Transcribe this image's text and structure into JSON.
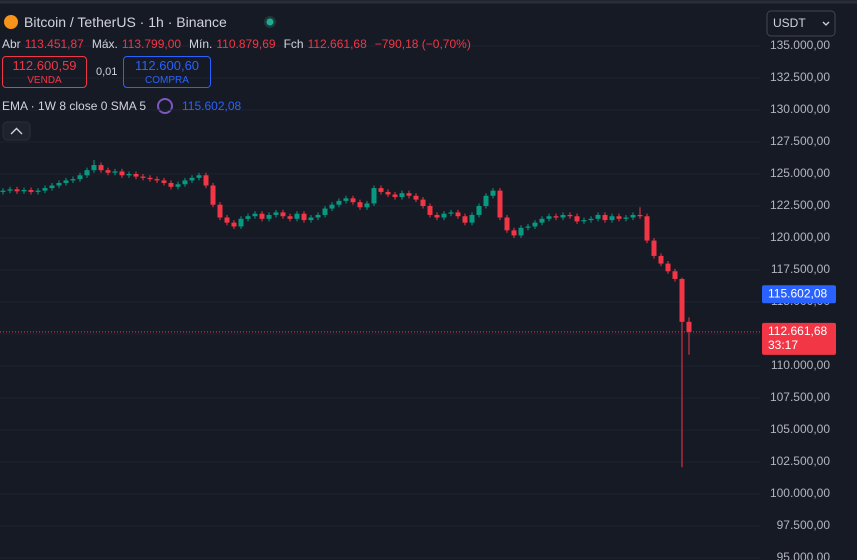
{
  "header": {
    "symbol": "Bitcoin / TetherUS · 1h · Binance",
    "ohlc": [
      {
        "label": "Abr",
        "value": "113.451,87"
      },
      {
        "label": "Máx.",
        "value": "113.799,00"
      },
      {
        "label": "Mín.",
        "value": "110.879,69"
      },
      {
        "label": "Fch",
        "value": "112.661,68"
      }
    ],
    "change": "−790,18 (−0,70%)"
  },
  "trade": {
    "sell_price": "112.600,59",
    "sell_label": "VENDA",
    "spread": "0,01",
    "buy_price": "112.600,60",
    "buy_label": "COMPRA"
  },
  "indicator": {
    "name": "EMA · 1W 8 close 0 SMA 5",
    "value": "115.602,08"
  },
  "currency": "USDT",
  "chart_data": {
    "type": "candlestick",
    "open": [
      123600,
      123700,
      123800,
      123650,
      123750,
      123600,
      123700,
      123900,
      124100,
      124300,
      124500,
      124600,
      124900,
      125300,
      125700,
      125300,
      125100,
      125200,
      124900,
      125000,
      124800,
      124700,
      124600,
      124500,
      124300,
      124000,
      124200,
      124500,
      124700,
      124900,
      124100,
      122600,
      121600,
      121200,
      120900,
      121500,
      121700,
      121900,
      121500,
      121800,
      122000,
      121700,
      121500,
      121900,
      121400,
      121600,
      121800,
      122300,
      122600,
      122900,
      123100,
      122800,
      122400,
      122700,
      123900,
      123600,
      123400,
      123200,
      123500,
      123300,
      123000,
      122500,
      121800,
      121600,
      121900,
      122000,
      121700,
      121200,
      121800,
      122500,
      123300,
      123700,
      121600,
      120600,
      120200,
      120800,
      120900,
      121200,
      121500,
      121700,
      121600,
      121800,
      121700,
      121300,
      121400,
      121500,
      121800,
      121400,
      121700,
      121500,
      121600,
      121800,
      121700,
      119800,
      118600,
      118000,
      117400,
      116800,
      113451.87
    ],
    "high": [
      123900,
      124000,
      124000,
      123950,
      123950,
      123900,
      124100,
      124300,
      124500,
      124700,
      124800,
      125100,
      125500,
      126100,
      125900,
      125500,
      125400,
      125400,
      125200,
      125200,
      125000,
      124900,
      124800,
      124700,
      124500,
      124400,
      124700,
      124900,
      125100,
      125100,
      124300,
      122800,
      121800,
      121400,
      121700,
      121900,
      122100,
      122100,
      122000,
      122200,
      122200,
      121900,
      122100,
      122100,
      121800,
      122000,
      122500,
      122800,
      123100,
      123300,
      123300,
      123000,
      122900,
      124100,
      124100,
      123800,
      123600,
      123700,
      123700,
      123500,
      123200,
      122700,
      122000,
      122100,
      122200,
      122200,
      121900,
      122000,
      122700,
      123500,
      123900,
      123900,
      121800,
      120800,
      121000,
      121100,
      121400,
      121700,
      121900,
      121900,
      122000,
      122000,
      121900,
      121600,
      121700,
      122000,
      122000,
      121900,
      121900,
      121800,
      122000,
      122400,
      121900,
      120000,
      118800,
      118200,
      117600,
      116900,
      113799
    ],
    "low": [
      123400,
      123500,
      123450,
      123450,
      123400,
      123400,
      123500,
      123700,
      123900,
      124100,
      124300,
      124400,
      124700,
      125100,
      125100,
      124900,
      124900,
      124700,
      124700,
      124600,
      124500,
      124400,
      124300,
      124100,
      123800,
      123800,
      124000,
      124300,
      124500,
      123900,
      122400,
      121400,
      121000,
      120700,
      120700,
      121300,
      121500,
      121300,
      121300,
      121600,
      121500,
      121300,
      121300,
      121200,
      121200,
      121400,
      121600,
      122100,
      122400,
      122700,
      122600,
      122200,
      122200,
      122500,
      123400,
      123200,
      123000,
      123000,
      123100,
      122800,
      122300,
      121600,
      121400,
      121400,
      121700,
      121500,
      121000,
      121000,
      121600,
      122300,
      123100,
      121400,
      120400,
      120000,
      120000,
      120600,
      120700,
      121000,
      121300,
      121400,
      121400,
      121500,
      121100,
      121100,
      121200,
      121300,
      121200,
      121200,
      121300,
      121300,
      121400,
      121500,
      119600,
      118400,
      117800,
      117200,
      116600,
      102100,
      110879.69
    ],
    "close": [
      123700,
      123800,
      123650,
      123750,
      123600,
      123700,
      123900,
      124100,
      124300,
      124500,
      124600,
      124900,
      125300,
      125700,
      125300,
      125100,
      125200,
      124900,
      125000,
      124800,
      124700,
      124600,
      124500,
      124300,
      124000,
      124200,
      124500,
      124700,
      124900,
      124100,
      122600,
      121600,
      121200,
      120900,
      121500,
      121700,
      121900,
      121500,
      121800,
      122000,
      121700,
      121500,
      121900,
      121400,
      121600,
      121800,
      122300,
      122600,
      122900,
      123100,
      122800,
      122400,
      122700,
      123900,
      123600,
      123400,
      123200,
      123500,
      123300,
      123000,
      122500,
      121800,
      121600,
      121900,
      122000,
      121700,
      121200,
      121800,
      122500,
      123300,
      123700,
      121600,
      120600,
      120200,
      120800,
      120900,
      121200,
      121500,
      121700,
      121600,
      121800,
      121700,
      121300,
      121400,
      121500,
      121800,
      121400,
      121700,
      121500,
      121600,
      121800,
      121700,
      119800,
      118600,
      118000,
      117400,
      116800,
      113451.87,
      112661.68
    ],
    "up_color": "#089981",
    "down_color": "#f23645",
    "ylim": [
      95000,
      135000
    ],
    "yticks": [
      {
        "value": 95000,
        "label": "95.000,00"
      },
      {
        "value": 97500,
        "label": "97.500,00"
      },
      {
        "value": 100000,
        "label": "100.000,00"
      },
      {
        "value": 102500,
        "label": "102.500,00"
      },
      {
        "value": 105000,
        "label": "105.000,00"
      },
      {
        "value": 107500,
        "label": "107.500,00"
      },
      {
        "value": 110000,
        "label": "110.000,00"
      },
      {
        "value": 112500,
        "label": "112.500,00"
      },
      {
        "value": 115000,
        "label": "115.000,00"
      },
      {
        "value": 117500,
        "label": "117.500,00"
      },
      {
        "value": 120000,
        "label": "120.000,00"
      },
      {
        "value": 122500,
        "label": "122.500,00"
      },
      {
        "value": 125000,
        "label": "125.000,00"
      },
      {
        "value": 127500,
        "label": "127.500,00"
      },
      {
        "value": 130000,
        "label": "130.000,00"
      },
      {
        "value": 132500,
        "label": "132.500,00"
      },
      {
        "value": 135000,
        "label": "135.000,00"
      }
    ],
    "grid": true,
    "price_tags": [
      {
        "value": 115602.08,
        "label": "115.602,08",
        "color": "#2962ff",
        "line": false
      },
      {
        "value": 112661.68,
        "label": "112.661,68",
        "color": "#f23645",
        "line": true
      }
    ],
    "countdown": "33:17"
  }
}
